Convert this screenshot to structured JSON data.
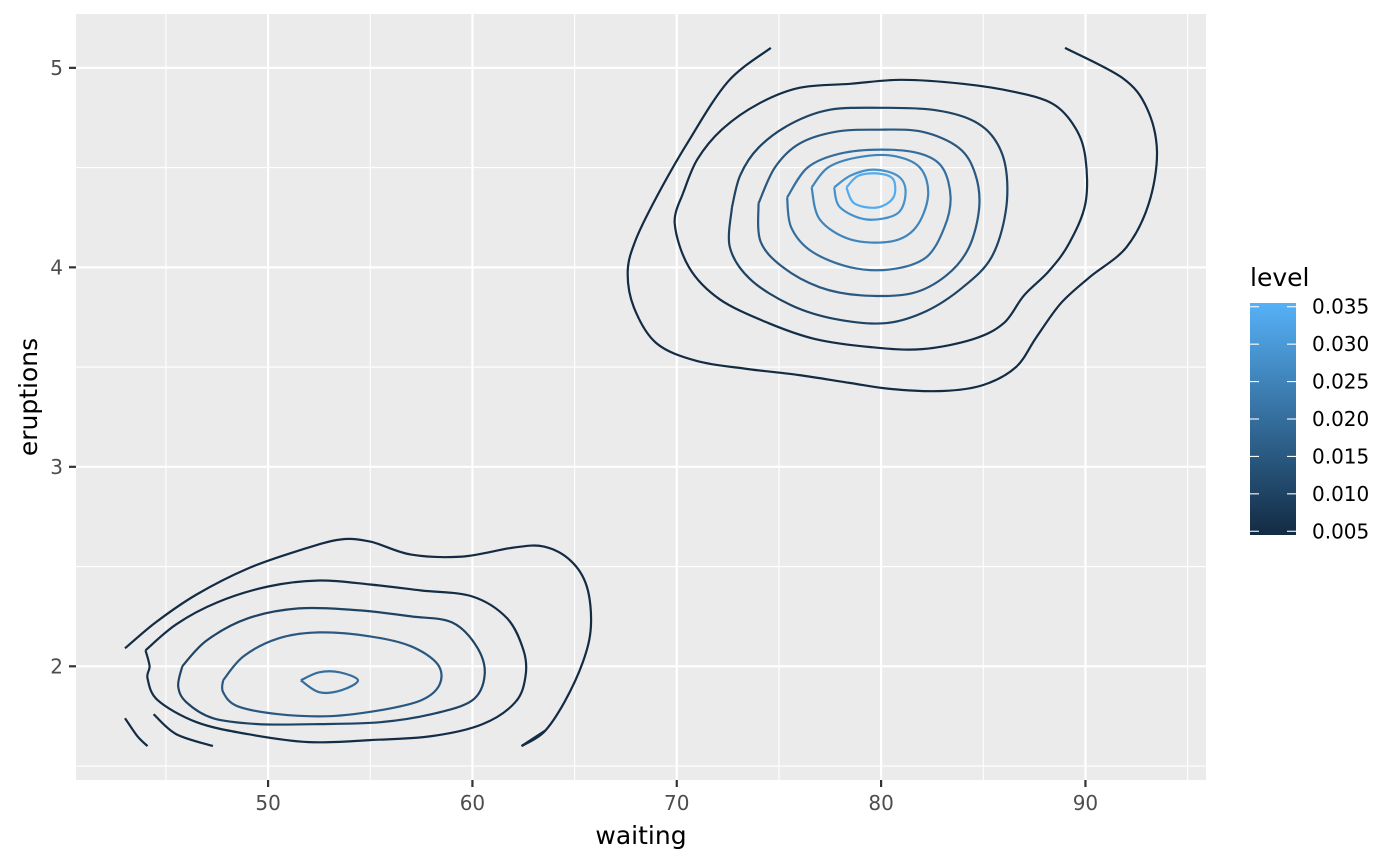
{
  "chart_data": {
    "type": "contour",
    "xlabel": "waiting",
    "ylabel": "eruptions",
    "xlim": [
      40.6,
      95.9
    ],
    "ylim": [
      1.43,
      5.27
    ],
    "x_major_ticks": [
      50,
      60,
      70,
      80,
      90
    ],
    "x_minor_ticks": [
      45,
      55,
      65,
      75,
      85,
      95
    ],
    "y_major_ticks": [
      2,
      3,
      4,
      5
    ],
    "y_minor_ticks": [
      1.5,
      2.5,
      3.5,
      4.5
    ],
    "x_tick_labels": [
      "50",
      "60",
      "70",
      "80",
      "90"
    ],
    "y_tick_labels": [
      "2",
      "3",
      "4",
      "5"
    ],
    "grid": true,
    "legend": {
      "title": "level",
      "position": "right",
      "breaks": [
        0.005,
        0.01,
        0.015,
        0.02,
        0.025,
        0.03,
        0.035
      ],
      "labels": [
        "0.005",
        "0.010",
        "0.015",
        "0.020",
        "0.025",
        "0.030",
        "0.035"
      ],
      "range": [
        0.0045,
        0.0355
      ],
      "low_color": "#132B43",
      "high_color": "#56B1F7"
    },
    "colors": {
      "panel": "#EBEBEB",
      "grid": "#FFFFFF"
    },
    "contours": [
      {
        "level": 0.002,
        "path": [
          [
            43.0,
            2.09
          ],
          [
            44.5,
            2.22
          ],
          [
            46.5,
            2.36
          ],
          [
            49.0,
            2.49
          ],
          [
            51.5,
            2.58
          ],
          [
            53.5,
            2.635
          ],
          [
            55.0,
            2.625
          ],
          [
            57.0,
            2.56
          ],
          [
            59.5,
            2.55
          ],
          [
            62.0,
            2.595
          ],
          [
            63.5,
            2.6
          ],
          [
            64.8,
            2.53
          ],
          [
            65.6,
            2.4
          ],
          [
            65.8,
            2.2
          ],
          [
            65.4,
            2.02
          ],
          [
            64.5,
            1.82
          ],
          [
            63.5,
            1.67
          ],
          [
            62.4,
            1.6
          ]
        ]
      },
      {
        "level": 0.002,
        "path": [
          [
            43.0,
            1.74
          ],
          [
            43.6,
            1.65
          ],
          [
            44.1,
            1.6
          ]
        ]
      },
      {
        "level": 0.002,
        "path": [
          [
            74.6,
            5.1
          ],
          [
            72.5,
            4.93
          ],
          [
            70.5,
            4.62
          ],
          [
            69.0,
            4.35
          ],
          [
            68.0,
            4.14
          ],
          [
            67.6,
            3.98
          ],
          [
            67.9,
            3.8
          ],
          [
            69.0,
            3.62
          ],
          [
            71.0,
            3.53
          ],
          [
            73.5,
            3.49
          ],
          [
            76.0,
            3.46
          ],
          [
            78.5,
            3.42
          ],
          [
            80.5,
            3.39
          ],
          [
            83.0,
            3.38
          ],
          [
            85.0,
            3.41
          ],
          [
            86.6,
            3.5
          ],
          [
            87.6,
            3.65
          ],
          [
            88.8,
            3.82
          ],
          [
            90.2,
            3.95
          ],
          [
            92.0,
            4.1
          ],
          [
            93.1,
            4.32
          ],
          [
            93.5,
            4.58
          ],
          [
            93.0,
            4.8
          ],
          [
            91.8,
            4.95
          ],
          [
            89.0,
            5.1
          ]
        ]
      },
      {
        "level": 0.005,
        "path": [
          [
            44.0,
            2.08
          ],
          [
            45.5,
            2.21
          ],
          [
            47.5,
            2.32
          ],
          [
            50.0,
            2.4
          ],
          [
            52.5,
            2.43
          ],
          [
            55.0,
            2.41
          ],
          [
            57.5,
            2.38
          ],
          [
            60.0,
            2.35
          ],
          [
            61.7,
            2.24
          ],
          [
            62.5,
            2.08
          ],
          [
            62.6,
            1.95
          ],
          [
            62.1,
            1.82
          ],
          [
            60.5,
            1.71
          ],
          [
            58.0,
            1.65
          ],
          [
            55.0,
            1.63
          ],
          [
            52.0,
            1.62
          ],
          [
            49.0,
            1.66
          ],
          [
            46.5,
            1.72
          ],
          [
            44.6,
            1.83
          ],
          [
            44.1,
            1.94
          ],
          [
            44.2,
            2.0
          ],
          [
            44.0,
            2.08
          ]
        ]
      },
      {
        "level": 0.005,
        "path": [
          [
            44.4,
            1.76
          ],
          [
            45.5,
            1.66
          ],
          [
            47.3,
            1.6
          ]
        ]
      },
      {
        "level": 0.005,
        "path": [
          [
            62.4,
            1.6
          ],
          [
            63.6,
            1.68
          ]
        ]
      },
      {
        "level": 0.005,
        "path": [
          [
            70.3,
            4.37
          ],
          [
            69.9,
            4.22
          ],
          [
            70.6,
            4.0
          ],
          [
            72.1,
            3.84
          ],
          [
            74.5,
            3.72
          ],
          [
            76.8,
            3.64
          ],
          [
            79.5,
            3.6
          ],
          [
            82.0,
            3.59
          ],
          [
            84.5,
            3.64
          ],
          [
            86.0,
            3.72
          ],
          [
            87.0,
            3.86
          ],
          [
            88.2,
            3.98
          ],
          [
            89.2,
            4.12
          ],
          [
            90.0,
            4.32
          ],
          [
            90.0,
            4.55
          ],
          [
            89.5,
            4.7
          ],
          [
            88.4,
            4.82
          ],
          [
            86.5,
            4.88
          ],
          [
            84.0,
            4.92
          ],
          [
            81.0,
            4.94
          ],
          [
            78.5,
            4.92
          ],
          [
            76.0,
            4.9
          ],
          [
            74.0,
            4.82
          ],
          [
            72.2,
            4.69
          ],
          [
            71.0,
            4.54
          ],
          [
            70.3,
            4.37
          ]
        ]
      },
      {
        "level": 0.01,
        "path": [
          [
            45.8,
            2.0
          ],
          [
            47.0,
            2.13
          ],
          [
            49.0,
            2.24
          ],
          [
            51.5,
            2.29
          ],
          [
            54.5,
            2.28
          ],
          [
            57.0,
            2.25
          ],
          [
            59.0,
            2.22
          ],
          [
            60.2,
            2.1
          ],
          [
            60.6,
            1.96
          ],
          [
            60.0,
            1.83
          ],
          [
            58.0,
            1.76
          ],
          [
            55.5,
            1.72
          ],
          [
            52.5,
            1.71
          ],
          [
            49.5,
            1.71
          ],
          [
            47.3,
            1.74
          ],
          [
            46.0,
            1.82
          ],
          [
            45.6,
            1.9
          ],
          [
            45.8,
            2.0
          ]
        ]
      },
      {
        "level": 0.01,
        "path": [
          [
            72.7,
            4.3
          ],
          [
            72.6,
            4.1
          ],
          [
            73.6,
            3.94
          ],
          [
            75.6,
            3.81
          ],
          [
            77.8,
            3.74
          ],
          [
            80.2,
            3.72
          ],
          [
            82.2,
            3.78
          ],
          [
            84.0,
            3.9
          ],
          [
            85.4,
            4.05
          ],
          [
            86.1,
            4.28
          ],
          [
            86.1,
            4.5
          ],
          [
            85.5,
            4.65
          ],
          [
            84.4,
            4.74
          ],
          [
            82.5,
            4.79
          ],
          [
            80.0,
            4.8
          ],
          [
            77.5,
            4.79
          ],
          [
            75.6,
            4.72
          ],
          [
            74.0,
            4.6
          ],
          [
            73.1,
            4.46
          ],
          [
            72.7,
            4.3
          ]
        ]
      },
      {
        "level": 0.015,
        "path": [
          [
            47.8,
            1.93
          ],
          [
            48.8,
            2.05
          ],
          [
            50.5,
            2.14
          ],
          [
            52.5,
            2.17
          ],
          [
            55.0,
            2.15
          ],
          [
            57.0,
            2.1
          ],
          [
            58.3,
            2.01
          ],
          [
            58.4,
            1.91
          ],
          [
            57.5,
            1.83
          ],
          [
            55.5,
            1.78
          ],
          [
            53.0,
            1.75
          ],
          [
            50.5,
            1.76
          ],
          [
            48.5,
            1.8
          ],
          [
            47.8,
            1.87
          ],
          [
            47.8,
            1.93
          ]
        ]
      },
      {
        "level": 0.015,
        "path": [
          [
            74.0,
            4.32
          ],
          [
            74.1,
            4.13
          ],
          [
            75.2,
            4.0
          ],
          [
            77.0,
            3.9
          ],
          [
            79.0,
            3.86
          ],
          [
            81.5,
            3.87
          ],
          [
            83.2,
            3.96
          ],
          [
            84.3,
            4.1
          ],
          [
            84.8,
            4.3
          ],
          [
            84.6,
            4.47
          ],
          [
            83.8,
            4.6
          ],
          [
            82.0,
            4.68
          ],
          [
            79.8,
            4.69
          ],
          [
            77.8,
            4.68
          ],
          [
            76.0,
            4.62
          ],
          [
            74.8,
            4.5
          ],
          [
            74.0,
            4.32
          ]
        ]
      },
      {
        "level": 0.02,
        "path": [
          [
            51.6,
            1.93
          ],
          [
            52.5,
            1.97
          ],
          [
            53.5,
            1.97
          ],
          [
            54.4,
            1.93
          ],
          [
            53.6,
            1.88
          ],
          [
            52.5,
            1.87
          ],
          [
            51.6,
            1.93
          ]
        ]
      },
      {
        "level": 0.02,
        "path": [
          [
            75.4,
            4.35
          ],
          [
            75.6,
            4.2
          ],
          [
            76.6,
            4.08
          ],
          [
            78.5,
            4.0
          ],
          [
            80.5,
            3.99
          ],
          [
            82.2,
            4.05
          ],
          [
            83.1,
            4.2
          ],
          [
            83.4,
            4.35
          ],
          [
            83.0,
            4.5
          ],
          [
            81.9,
            4.57
          ],
          [
            80.0,
            4.59
          ],
          [
            78.0,
            4.57
          ],
          [
            76.4,
            4.5
          ],
          [
            75.4,
            4.35
          ]
        ]
      },
      {
        "level": 0.025,
        "path": [
          [
            76.6,
            4.4
          ],
          [
            77.0,
            4.24
          ],
          [
            78.5,
            4.14
          ],
          [
            80.5,
            4.13
          ],
          [
            81.7,
            4.2
          ],
          [
            82.3,
            4.36
          ],
          [
            81.9,
            4.5
          ],
          [
            80.5,
            4.56
          ],
          [
            78.8,
            4.55
          ],
          [
            77.4,
            4.5
          ],
          [
            76.6,
            4.4
          ]
        ]
      },
      {
        "level": 0.028,
        "path": [
          [
            77.7,
            4.4
          ],
          [
            78.0,
            4.3
          ],
          [
            79.3,
            4.24
          ],
          [
            80.8,
            4.27
          ],
          [
            81.2,
            4.38
          ],
          [
            80.8,
            4.46
          ],
          [
            79.6,
            4.49
          ],
          [
            78.5,
            4.46
          ],
          [
            77.7,
            4.4
          ]
        ]
      },
      {
        "level": 0.034,
        "path": [
          [
            78.3,
            4.4
          ],
          [
            78.7,
            4.32
          ],
          [
            79.8,
            4.3
          ],
          [
            80.6,
            4.35
          ],
          [
            80.6,
            4.44
          ],
          [
            79.9,
            4.47
          ],
          [
            78.9,
            4.46
          ],
          [
            78.3,
            4.4
          ]
        ]
      }
    ]
  }
}
